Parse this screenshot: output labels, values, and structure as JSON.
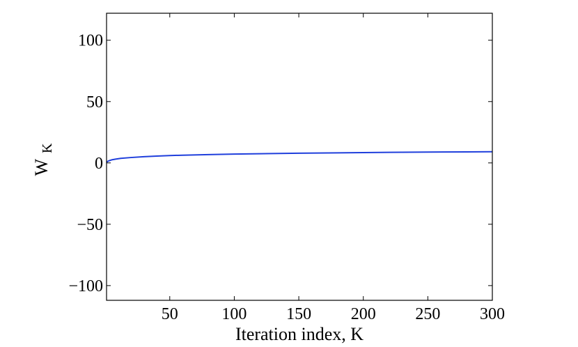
{
  "chart_data": {
    "type": "line",
    "title": "",
    "xlabel": "Iteration index, K",
    "ylabel_main": "W",
    "ylabel_sub": "K",
    "xlim": [
      1,
      300
    ],
    "ylim": [
      -112,
      122
    ],
    "xticks": [
      50,
      100,
      150,
      200,
      250,
      300
    ],
    "yticks": [
      -100,
      -50,
      0,
      50,
      100
    ],
    "xtick_labels": [
      "50",
      "100",
      "150",
      "200",
      "250",
      "300"
    ],
    "ytick_labels": [
      "−100",
      "−50",
      "0",
      "50",
      "100"
    ],
    "grid": false,
    "legend": "none",
    "series": [
      {
        "color": "#1f3fdc",
        "x": [
          1,
          2,
          3,
          5,
          8,
          12,
          20,
          30,
          40,
          50,
          60,
          80,
          100,
          120,
          150,
          180,
          200,
          220,
          250,
          280,
          300
        ],
        "y": [
          0.6,
          1.3,
          1.8,
          2.5,
          3.1,
          3.7,
          4.4,
          5.1,
          5.6,
          6.0,
          6.3,
          6.8,
          7.2,
          7.5,
          7.9,
          8.2,
          8.4,
          8.6,
          8.8,
          9.0,
          9.1
        ]
      }
    ]
  }
}
